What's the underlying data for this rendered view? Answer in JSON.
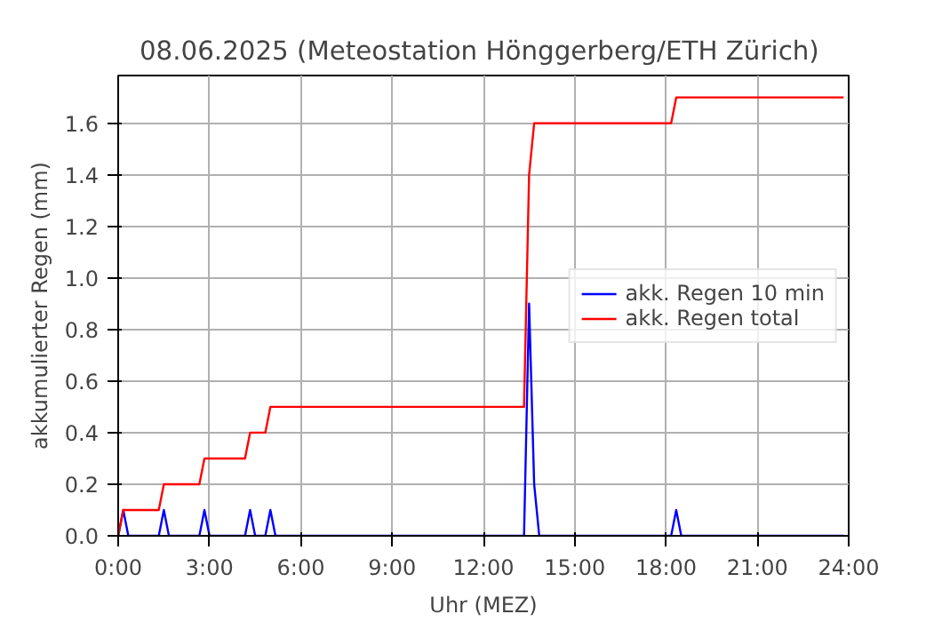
{
  "chart_data": {
    "type": "line",
    "title": "08.06.2025  (Meteostation Hönggerberg/ETH Zürich)",
    "xlabel": "Uhr (MEZ)",
    "ylabel": "akkumulierter Regen (mm)",
    "xlim": [
      0,
      24
    ],
    "ylim": [
      0,
      1.785
    ],
    "xticks": [
      {
        "value": 0,
        "label": "0:00"
      },
      {
        "value": 3,
        "label": "3:00"
      },
      {
        "value": 6,
        "label": "6:00"
      },
      {
        "value": 9,
        "label": "9:00"
      },
      {
        "value": 12,
        "label": "12:00"
      },
      {
        "value": 15,
        "label": "15:00"
      },
      {
        "value": 18,
        "label": "18:00"
      },
      {
        "value": 21,
        "label": "21:00"
      },
      {
        "value": 24,
        "label": "24:00"
      }
    ],
    "yticks": [
      {
        "value": 0,
        "label": "0.0"
      },
      {
        "value": 0.2,
        "label": "0.2"
      },
      {
        "value": 0.4,
        "label": "0.4"
      },
      {
        "value": 0.6,
        "label": "0.6"
      },
      {
        "value": 0.8,
        "label": "0.8"
      },
      {
        "value": 1.0,
        "label": "1.0"
      },
      {
        "value": 1.2,
        "label": "1.2"
      },
      {
        "value": 1.4,
        "label": "1.4"
      },
      {
        "value": 1.6,
        "label": "1.6"
      }
    ],
    "grid": true,
    "legend": "right",
    "line_style": "solid",
    "series": [
      {
        "name": "akk. Regen 10 min",
        "color": "#0000ff",
        "x": [
          0,
          0.1667,
          0.3333,
          1.3333,
          1.5,
          1.6667,
          2.6667,
          2.8333,
          3.0,
          4.1667,
          4.3333,
          4.5,
          4.8333,
          5.0,
          5.1667,
          13.3333,
          13.5,
          13.6667,
          13.8333,
          18.1667,
          18.3333,
          18.5,
          23.8333
        ],
        "values": [
          0,
          0.1,
          0,
          0,
          0.1,
          0,
          0,
          0.1,
          0,
          0,
          0.1,
          0,
          0,
          0.1,
          0,
          0,
          0.9,
          0.2,
          0,
          0,
          0.1,
          0,
          0
        ]
      },
      {
        "name": "akk. Regen total",
        "color": "#ff0000",
        "x": [
          0,
          0.1667,
          1.3333,
          1.5,
          2.6667,
          2.8333,
          4.1667,
          4.3333,
          4.8333,
          5.0,
          13.3333,
          13.5,
          13.6667,
          18.1667,
          18.3333,
          23.8333
        ],
        "values": [
          0,
          0.1,
          0.1,
          0.2,
          0.2,
          0.3,
          0.3,
          0.4,
          0.4,
          0.5,
          0.5,
          1.4,
          1.6,
          1.6,
          1.7,
          1.7
        ]
      }
    ]
  }
}
